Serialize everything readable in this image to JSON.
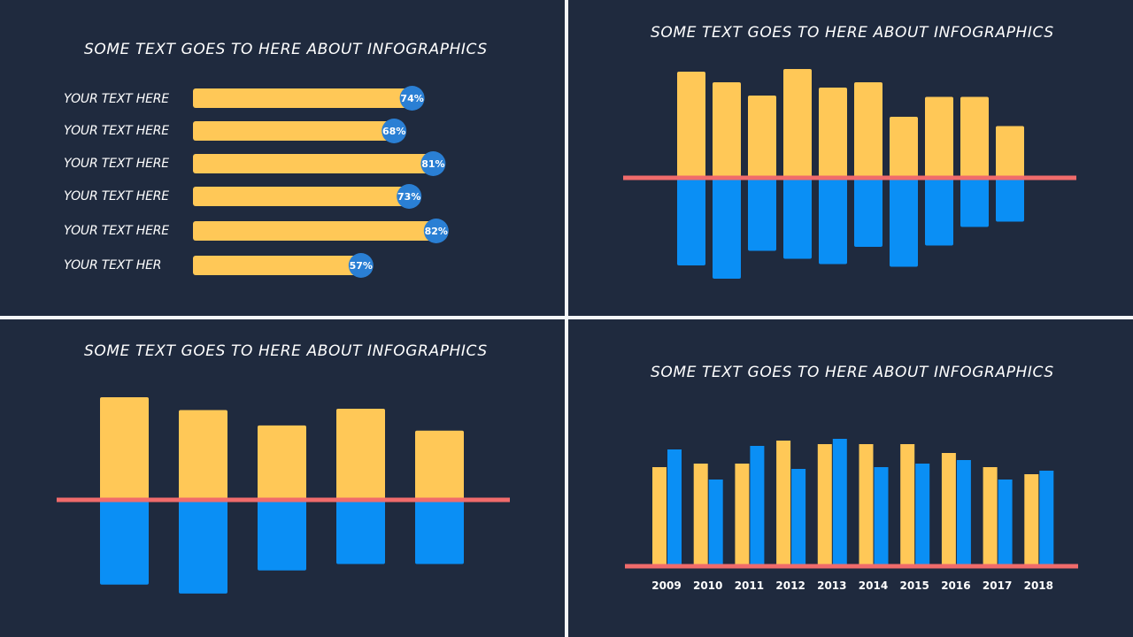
{
  "panels": {
    "p1": {
      "title": "SOME TEXT GOES TO HERE ABOUT INFOGRAPHICS"
    },
    "p2": {
      "title": "SOME TEXT GOES TO HERE ABOUT INFOGRAPHICS"
    },
    "p3": {
      "title": "SOME TEXT GOES TO HERE ABOUT INFOGRAPHICS"
    },
    "p4": {
      "title": "SOME TEXT GOES TO HERE ABOUT INFOGRAPHICS"
    }
  },
  "colors": {
    "background": "#1f2a3e",
    "yellow": "#ffc857",
    "blue": "#0a8ff5",
    "badge": "#2a7fd4",
    "baseline": "#f06b6b",
    "divider": "#f4f6f8"
  },
  "chart_data": [
    {
      "type": "bar",
      "orientation": "horizontal",
      "title": "SOME TEXT GOES TO HERE ABOUT INFOGRAPHICS",
      "categories": [
        "YOUR TEXT HERE",
        "YOUR TEXT HERE",
        "YOUR TEXT HERE",
        "YOUR TEXT HERE",
        "YOUR TEXT HERE",
        "YOUR TEXT HER"
      ],
      "values": [
        74,
        68,
        81,
        73,
        82,
        57
      ],
      "value_labels": [
        "74%",
        "68%",
        "81%",
        "73%",
        "82%",
        "57%"
      ],
      "xlim": [
        0,
        100
      ]
    },
    {
      "type": "bar",
      "orientation": "diverging",
      "title": "SOME TEXT GOES TO HERE ABOUT INFOGRAPHICS",
      "series": [
        {
          "name": "positive",
          "values": [
            8.0,
            7.2,
            6.2,
            8.2,
            6.8,
            7.2,
            4.6,
            6.1,
            6.1,
            3.9
          ]
        },
        {
          "name": "negative",
          "values": [
            -6.6,
            -7.6,
            -5.5,
            -6.1,
            -6.5,
            -5.2,
            -6.7,
            -5.1,
            -3.7,
            -3.3
          ]
        }
      ],
      "ylim": [
        -8,
        8.5
      ]
    },
    {
      "type": "bar",
      "orientation": "diverging",
      "title": "SOME TEXT GOES TO HERE ABOUT INFOGRAPHICS",
      "series": [
        {
          "name": "positive",
          "values": [
            8.0,
            7.0,
            5.8,
            7.1,
            5.4
          ]
        },
        {
          "name": "negative",
          "values": [
            -6.6,
            -7.3,
            -5.5,
            -5.0,
            -5.0
          ]
        }
      ],
      "ylim": [
        -7.5,
        8.5
      ]
    },
    {
      "type": "bar",
      "orientation": "vertical-grouped",
      "title": "SOME TEXT GOES TO HERE ABOUT INFOGRAPHICS",
      "categories": [
        "2009",
        "2010",
        "2011",
        "2012",
        "2013",
        "2014",
        "2015",
        "2016",
        "2017",
        "2018"
      ],
      "series": [
        {
          "name": "yellow",
          "values": [
            5.6,
            5.8,
            5.8,
            7.1,
            6.9,
            6.9,
            6.9,
            6.4,
            5.6,
            5.2
          ]
        },
        {
          "name": "blue",
          "values": [
            6.6,
            4.9,
            6.8,
            5.5,
            7.2,
            5.6,
            5.8,
            6.0,
            4.9,
            5.4
          ]
        }
      ],
      "ylim": [
        0,
        8
      ]
    }
  ]
}
